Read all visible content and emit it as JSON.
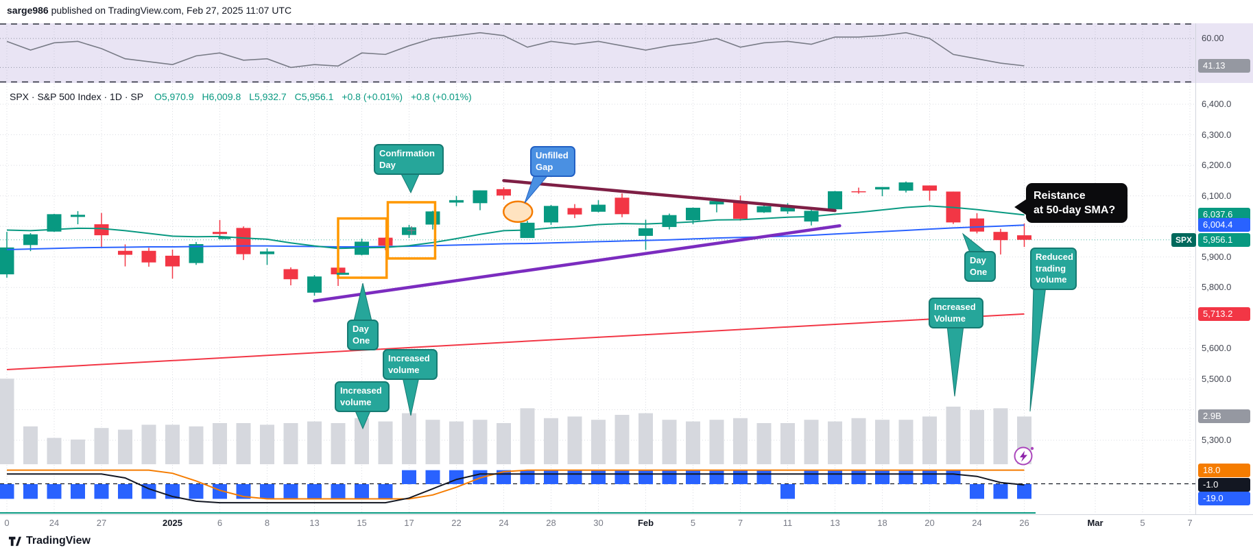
{
  "header": {
    "username": "sarge986",
    "publish_text": "published on TradingView.com, Feb 27, 2025 11:07 UTC"
  },
  "legend": {
    "symbol_title": "SPX · S&P 500 Index · 1D · SP",
    "o_label": "O",
    "o": "5,970.9",
    "h_label": "H",
    "h": "6,009.8",
    "l_label": "L",
    "l": "5,932.7",
    "c_label": "C",
    "c": "5,956.1",
    "change": "+0.8 (+0.01%)",
    "change_ext": "+0.8 (+0.01%)"
  },
  "axis": {
    "badges": {
      "ma21": {
        "label": "6,037.6",
        "color": "#089981",
        "price": 6037.6
      },
      "ma50": {
        "label": "6,004.4",
        "color": "#2962ff",
        "price": 6004.4
      },
      "last": {
        "label": "5,956.1",
        "symbol": "SPX",
        "color": "#089981",
        "price": 5956.1
      },
      "ma200": {
        "label": "5,713.2",
        "color": "#f23645",
        "price": 5713.2
      },
      "volume": {
        "label": "2.9B",
        "color": "#9598a1"
      },
      "oscillator": {
        "label": "41.13",
        "color": "#9598a1",
        "value": 41.13
      },
      "hist_orange": {
        "label": "18.0",
        "color": "#f57c00",
        "value": 18.0
      },
      "hist_black": {
        "label": "-1.0",
        "color": "#131722",
        "value": -1.0
      },
      "hist_blue": {
        "label": "-19.0",
        "color": "#2962ff",
        "value": -19.0
      }
    }
  },
  "xaxis": {
    "ticks": [
      {
        "i": 0,
        "label": "0"
      },
      {
        "i": 2,
        "label": "24"
      },
      {
        "i": 4,
        "label": "27"
      },
      {
        "i": 7,
        "label": "2025",
        "major": true
      },
      {
        "i": 9,
        "label": "6"
      },
      {
        "i": 11,
        "label": "8"
      },
      {
        "i": 13,
        "label": "13"
      },
      {
        "i": 15,
        "label": "15"
      },
      {
        "i": 17,
        "label": "17"
      },
      {
        "i": 19,
        "label": "22"
      },
      {
        "i": 21,
        "label": "24"
      },
      {
        "i": 23,
        "label": "28"
      },
      {
        "i": 25,
        "label": "30"
      },
      {
        "i": 27,
        "label": "Feb",
        "major": true
      },
      {
        "i": 29,
        "label": "5"
      },
      {
        "i": 31,
        "label": "7"
      },
      {
        "i": 33,
        "label": "11"
      },
      {
        "i": 35,
        "label": "13"
      },
      {
        "i": 37,
        "label": "18"
      },
      {
        "i": 39,
        "label": "20"
      },
      {
        "i": 41,
        "label": "24"
      },
      {
        "i": 43,
        "label": "26"
      },
      {
        "i": 46,
        "label": "Mar",
        "major": true
      },
      {
        "i": 48,
        "label": "5"
      },
      {
        "i": 50,
        "label": "7"
      }
    ]
  },
  "annotations": {
    "confirmation_day": {
      "text": "Confirmation Day"
    },
    "unfilled_gap": {
      "text": "Unfilled Gap"
    },
    "day_one_1": {
      "text": "Day One"
    },
    "day_one_2": {
      "text": "Day One"
    },
    "increased_volume_1": {
      "text": "Increased volume"
    },
    "increased_volume_2": {
      "text": "Increased volume"
    },
    "increased_volume_3": {
      "text": "Increased Volume"
    },
    "reduced_volume": {
      "text": "Reduced trading volume"
    },
    "resistance": {
      "line1": "Reistance",
      "line2": "at 50-day SMA?"
    }
  },
  "footer": {
    "brand": "TradingView"
  },
  "chart_data": [
    {
      "type": "line",
      "name": "oscillator-panel",
      "title": "Momentum oscillator (RSI-style)",
      "ylim": [
        30,
        70
      ],
      "dashed_levels": [
        70,
        30
      ],
      "dotted_gridlines": [
        60,
        40
      ],
      "tick_label": "60.00",
      "last_value": 41.13,
      "line_color": "#787b86",
      "bg_color": "#e9e4f4",
      "values": [
        58,
        52,
        57,
        58,
        53,
        46,
        44,
        42,
        48,
        50,
        45,
        46,
        40,
        42,
        41,
        50,
        49,
        55,
        60,
        62,
        64,
        62,
        54,
        58,
        56,
        58,
        55,
        52,
        55,
        57,
        60,
        54,
        57,
        58,
        56,
        61,
        61,
        62,
        64,
        60,
        49,
        46,
        43,
        41.13
      ]
    },
    {
      "type": "candlestick",
      "name": "main-price-panel",
      "symbol": "SPX",
      "interval": "1D",
      "ylim": [
        5250,
        6450
      ],
      "up_color": "#089981",
      "down_color": "#f23645",
      "volume_color": "#d6d8de",
      "ma21_color": "#089981",
      "ma50_color": "#2962ff",
      "ma200_color": "#f23645",
      "last_close": 5956.1,
      "y_ticks": [
        {
          "price": 6400,
          "label": "6,400.0"
        },
        {
          "price": 6300,
          "label": "6,300.0"
        },
        {
          "price": 6200,
          "label": "6,200.0"
        },
        {
          "price": 6100,
          "label": "6,100.0"
        },
        {
          "price": 5900,
          "label": "5,900.0"
        },
        {
          "price": 5800,
          "label": "5,800.0"
        },
        {
          "price": 5600,
          "label": "5,600.0"
        },
        {
          "price": 5500,
          "label": "5,500.0"
        },
        {
          "price": 5300,
          "label": "5,300.0"
        }
      ],
      "grid_prices": [
        6400,
        6300,
        6200,
        6100,
        6000,
        5900,
        5800,
        5700,
        5600,
        5500,
        5400,
        5300
      ],
      "dates": [
        "Dec 20",
        "Dec 23",
        "Dec 24",
        "Dec 26",
        "Dec 27",
        "Dec 30",
        "Dec 31",
        "Jan 2",
        "Jan 3",
        "Jan 6",
        "Jan 7",
        "Jan 8",
        "Jan 10",
        "Jan 13",
        "Jan 14",
        "Jan 15",
        "Jan 16",
        "Jan 17",
        "Jan 21",
        "Jan 22",
        "Jan 23",
        "Jan 24",
        "Jan 27",
        "Jan 28",
        "Jan 29",
        "Jan 30",
        "Jan 31",
        "Feb 3",
        "Feb 4",
        "Feb 5",
        "Feb 6",
        "Feb 7",
        "Feb 10",
        "Feb 11",
        "Feb 12",
        "Feb 13",
        "Feb 14",
        "Feb 18",
        "Feb 19",
        "Feb 20",
        "Feb 21",
        "Feb 24",
        "Feb 25",
        "Feb 26"
      ],
      "candles": [
        [
          5843,
          5982,
          5832,
          5931
        ],
        [
          5939,
          5978,
          5919,
          5974
        ],
        [
          5983,
          6041,
          5982,
          6040
        ],
        [
          6031,
          6050,
          6007,
          6038
        ],
        [
          6007,
          6044,
          5932,
          5971
        ],
        [
          5920,
          5941,
          5869,
          5907
        ],
        [
          5920,
          5930,
          5868,
          5882
        ],
        [
          5904,
          5924,
          5829,
          5869
        ],
        [
          5880,
          5949,
          5874,
          5942
        ],
        [
          5982,
          6021,
          5960,
          5975
        ],
        [
          5995,
          6000,
          5890,
          5909
        ],
        [
          5909,
          5928,
          5874,
          5918
        ],
        [
          5860,
          5866,
          5807,
          5827
        ],
        [
          5783,
          5841,
          5773,
          5836
        ],
        [
          5865,
          5871,
          5805,
          5843
        ],
        [
          5907,
          5960,
          5905,
          5950
        ],
        [
          5963,
          5964,
          5922,
          5937
        ],
        [
          5972,
          6005,
          5962,
          5997
        ],
        [
          6006,
          6051,
          5990,
          6049
        ],
        [
          6078,
          6100,
          6066,
          6086
        ],
        [
          6076,
          6118,
          6053,
          6118
        ],
        [
          6122,
          6128,
          6088,
          6101
        ],
        [
          5962,
          6018,
          5962,
          6012
        ],
        [
          6013,
          6070,
          6005,
          6067
        ],
        [
          6060,
          6073,
          6027,
          6039
        ],
        [
          6048,
          6086,
          6046,
          6071
        ],
        [
          6094,
          6108,
          6030,
          6040
        ],
        [
          5969,
          6022,
          5923,
          5994
        ],
        [
          5998,
          6042,
          5990,
          6037
        ],
        [
          6020,
          6062,
          6007,
          6061
        ],
        [
          6072,
          6084,
          6046,
          6083
        ],
        [
          6083,
          6101,
          6019,
          6025
        ],
        [
          6046,
          6073,
          6044,
          6066
        ],
        [
          6049,
          6076,
          6041,
          6068
        ],
        [
          6016,
          6056,
          6003,
          6051
        ],
        [
          6056,
          6116,
          6052,
          6115
        ],
        [
          6115,
          6127,
          6107,
          6114
        ],
        [
          6121,
          6129,
          6099,
          6129
        ],
        [
          6117,
          6147,
          6111,
          6144
        ],
        [
          6134,
          6134,
          6084,
          6117
        ],
        [
          6114,
          6114,
          6008,
          6013
        ],
        [
          6026,
          6043,
          5977,
          5983
        ],
        [
          5982,
          5992,
          5908,
          5955
        ],
        [
          5970.9,
          6009.8,
          5932.7,
          5956.1
        ]
      ],
      "volume_billions": [
        5.2,
        2.3,
        1.6,
        1.5,
        2.2,
        2.1,
        2.4,
        2.4,
        2.3,
        2.5,
        2.5,
        2.4,
        2.5,
        2.6,
        2.5,
        2.8,
        2.6,
        3.1,
        2.7,
        2.6,
        2.7,
        2.5,
        3.4,
        2.8,
        2.9,
        2.7,
        3.0,
        3.1,
        2.7,
        2.6,
        2.7,
        2.8,
        2.5,
        2.5,
        2.7,
        2.6,
        2.8,
        2.7,
        2.7,
        2.9,
        3.5,
        3.3,
        3.4,
        2.9
      ],
      "ma21": [
        5988,
        5986,
        5990,
        5994,
        5993,
        5986,
        5977,
        5968,
        5966,
        5967,
        5962,
        5958,
        5946,
        5936,
        5928,
        5930,
        5931,
        5937,
        5947,
        5960,
        5974,
        5986,
        5988,
        5995,
        5999,
        6006,
        6009,
        6008,
        6011,
        6015,
        6021,
        6022,
        6026,
        6030,
        6032,
        6040,
        6046,
        6054,
        6062,
        6067,
        6062,
        6055,
        6046,
        6037.6
      ],
      "ma50": [
        5924,
        5926,
        5928,
        5930,
        5931,
        5932,
        5933,
        5933,
        5934,
        5935,
        5936,
        5936,
        5935,
        5934,
        5933,
        5933,
        5934,
        5935,
        5937,
        5939,
        5941,
        5943,
        5944,
        5946,
        5948,
        5950,
        5952,
        5954,
        5956,
        5959,
        5962,
        5964,
        5966,
        5968,
        5971,
        5975,
        5979,
        5983,
        5987,
        5991,
        5995,
        5998,
        6001,
        6004.4
      ],
      "ma200": {
        "start": 5531,
        "end": 5713.2
      },
      "drawings": {
        "down_trendline": {
          "i1": 21,
          "p1": 6150,
          "i2": 35,
          "p2": 6052,
          "color": "#7e1f45"
        },
        "up_trendline": {
          "i1": 13,
          "p1": 5756,
          "i2": 35.2,
          "p2": 6002,
          "color": "#7b2cbf"
        },
        "box1": {
          "i1": 14.0,
          "p1": 6026,
          "i2": 16.05,
          "p2": 5832,
          "color": "#ff9800"
        },
        "box2": {
          "i1": 16.1,
          "p1": 6079,
          "i2": 18.1,
          "p2": 5895,
          "color": "#ff9800"
        },
        "gap_ellipse": {
          "i": 21.6,
          "p": 6048,
          "stroke": "#f57c00",
          "fill": "rgba(255,171,64,0.33)"
        },
        "markers": [
          {
            "type": "dash",
            "i": 9.2,
            "p": 5962
          },
          {
            "type": "dash",
            "i": 14.2,
            "p": 5845
          },
          {
            "type": "plus",
            "i": 17.1,
            "p": 5987
          }
        ]
      }
    },
    {
      "type": "bar",
      "name": "signal-histogram-panel",
      "bar_color": "#2962ff",
      "orange_color": "#f57c00",
      "black_color": "#131722",
      "last_bar": -19.0,
      "last_orange": 18.0,
      "last_black": -1.0,
      "bars": [
        -19,
        -19,
        -19,
        -19,
        -19,
        -19,
        -19,
        -19,
        -19,
        -19,
        -19,
        -19,
        -19,
        -19,
        -19,
        -19,
        -19,
        18,
        18,
        18,
        18,
        18,
        18,
        18,
        18,
        18,
        18,
        18,
        18,
        18,
        18,
        18,
        18,
        -19,
        18,
        18,
        18,
        18,
        18,
        18,
        18,
        -19,
        -19,
        -19
      ],
      "orange_line": [
        18,
        18,
        18,
        18,
        18,
        18,
        18,
        14,
        4,
        -8,
        -16,
        -19,
        -19,
        -19,
        -19,
        -19,
        -19,
        -19,
        -14,
        -4,
        8,
        16,
        18,
        18,
        18,
        18,
        18,
        18,
        18,
        18,
        18,
        18,
        18,
        18,
        18,
        18,
        18,
        18,
        18,
        18,
        18,
        18,
        18,
        18
      ],
      "black_line": [
        13,
        13,
        13,
        13,
        13,
        8,
        -6,
        -16,
        -22,
        -24,
        -24,
        -24,
        -24,
        -24,
        -24,
        -24,
        -24,
        -18,
        -6,
        6,
        13,
        13,
        13,
        13,
        13,
        13,
        13,
        13,
        13,
        13,
        13,
        13,
        13,
        13,
        13,
        13,
        13,
        13,
        13,
        13,
        13,
        10,
        2,
        -1
      ]
    }
  ]
}
